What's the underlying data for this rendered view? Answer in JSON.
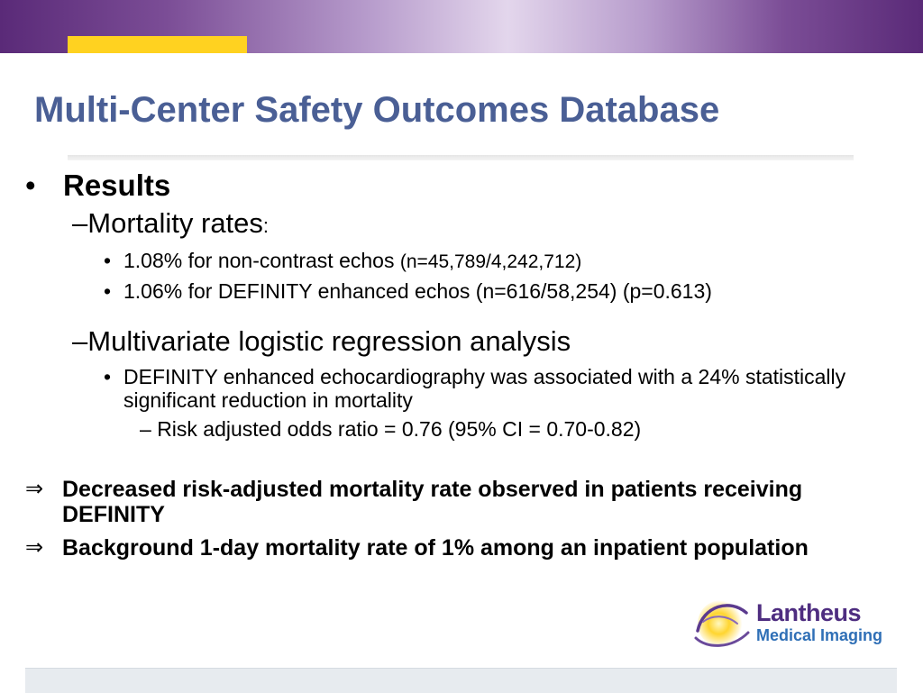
{
  "title": "Multi-Center Safety Outcomes Database",
  "bullets": {
    "results": "Results",
    "mortality_rates": "Mortality rates",
    "mortality_rates_colon": ":",
    "non_contrast_text": "1.08% for non-contrast echos ",
    "non_contrast_n": "(n=45,789/4,242,712)",
    "definity_text": "1.06% for DEFINITY enhanced echos (n=616/58,254) (p=0.613)",
    "multivariate": "Multivariate logistic regression analysis",
    "association": "DEFINITY enhanced echocardiography was associated with a 24% statistically significant reduction in mortality",
    "odds_ratio": "Risk adjusted odds ratio = 0.76 (95% CI = 0.70-0.82)"
  },
  "implications": [
    "Decreased risk-adjusted mortality rate observed in patients receiving DEFINITY",
    "Background 1-day mortality rate of 1% among an inpatient population"
  ],
  "symbols": {
    "round_bullet": "•",
    "dash": "–",
    "implies": "⇒"
  },
  "logo": {
    "name": "Lantheus",
    "subtitle": "Medical Imaging",
    "icon": "sunburst-logo-icon"
  },
  "colors": {
    "title": "#4a5f95",
    "accent_yellow": "#ffd220",
    "header_purple": "#5a2a78",
    "logo_purple": "#4e2d80",
    "logo_blue": "#2f6fb6"
  }
}
